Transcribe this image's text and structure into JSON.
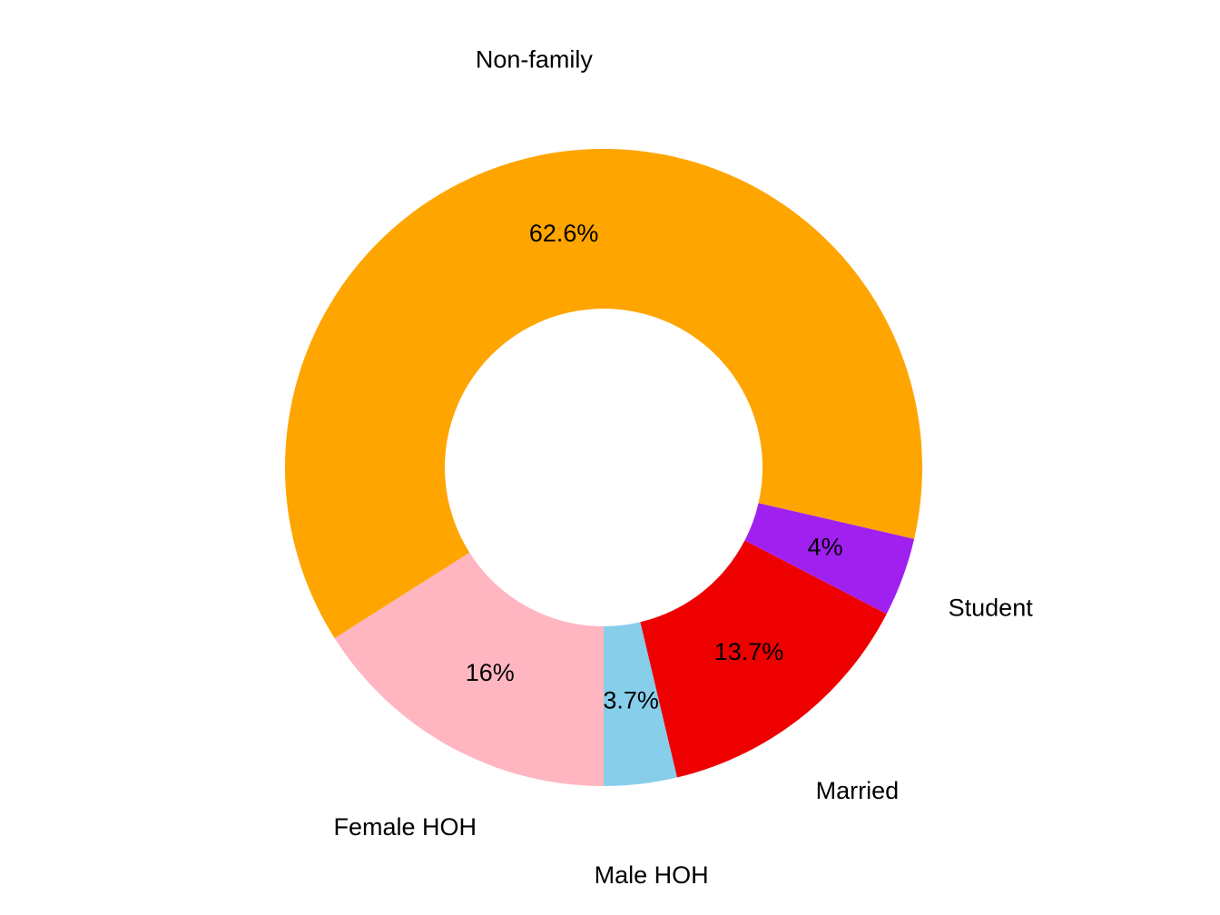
{
  "chart_data": {
    "type": "donut",
    "categories": [
      "Female HOH",
      "Non-family",
      "Student",
      "Married",
      "Male HOH"
    ],
    "values": [
      16,
      62.6,
      4,
      13.7,
      3.7
    ],
    "value_labels": [
      "16%",
      "62.6%",
      "4%",
      "13.7%",
      "3.7%"
    ],
    "colors": [
      "#FFB6C1",
      "#FFA500",
      "#A020F0",
      "#EE0000",
      "#87CEEB"
    ]
  }
}
